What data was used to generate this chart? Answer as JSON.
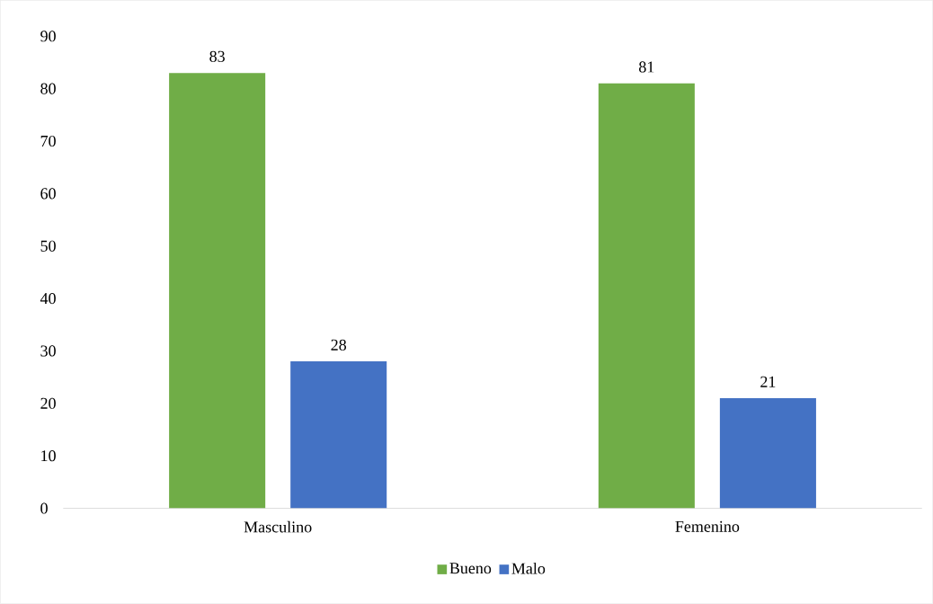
{
  "chart_data": {
    "type": "bar",
    "categories": [
      "Masculino",
      "Femenino"
    ],
    "series": [
      {
        "name": "Bueno",
        "color": "#70ad47",
        "values": [
          83,
          81
        ]
      },
      {
        "name": "Malo",
        "color": "#4472c4",
        "values": [
          28,
          21
        ]
      }
    ],
    "ylim": [
      0,
      90
    ],
    "yticks": [
      0,
      10,
      20,
      30,
      40,
      50,
      60,
      70,
      80,
      90
    ],
    "data_labels": true,
    "legend": "bottom",
    "grid": false
  }
}
